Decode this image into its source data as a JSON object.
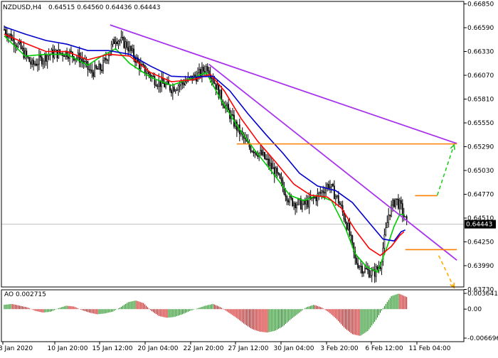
{
  "header": {
    "symbol": "NZDUSD,H4",
    "ohlc": "0.64515 0.64560 0.64436 0.64443"
  },
  "price_axis": {
    "labels": [
      "0.66850",
      "0.66590",
      "0.66330",
      "0.66070",
      "0.65810",
      "0.65550",
      "0.65290",
      "0.65030",
      "0.64770",
      "0.64510",
      "0.64250",
      "0.63990",
      "0.63730"
    ],
    "current_price": "0.64443"
  },
  "ao_panel": {
    "title": "AO 0.002715",
    "labels": [
      "0.003641",
      "0.00",
      "-0.006696"
    ],
    "range": [
      -0.006696,
      0.003641
    ]
  },
  "time_axis": {
    "labels": [
      "8 Jan 2020",
      "10 Jan 20:00",
      "15 Jan 12:00",
      "20 Jan 04:00",
      "22 Jan 20:00",
      "27 Jan 12:00",
      "30 Jan 04:00",
      "3 Feb 20:00",
      "6 Feb 12:00",
      "11 Feb 04:00"
    ]
  },
  "colors": {
    "bull": "#000000",
    "bear": "#000000",
    "ma_fast": "#00cc00",
    "ma_mid": "#ff0000",
    "ma_slow": "#0000cc",
    "trend": "#aa33ee",
    "level": "#ff8000",
    "arrow_up": "#22cc22",
    "arrow_down": "#ffaa00",
    "ao_up": "#008000",
    "ao_down": "#cc0000",
    "grid": "#d8d8d8"
  },
  "chart_data": {
    "type": "candlestick",
    "symbol": "NZDUSD",
    "timeframe": "H4",
    "ylim": [
      0.6367,
      0.669
    ],
    "close_path": [
      {
        "x": 0,
        "y": 0.6657
      },
      {
        "x": 10,
        "y": 0.664
      },
      {
        "x": 20,
        "y": 0.6618
      },
      {
        "x": 32,
        "y": 0.663
      },
      {
        "x": 45,
        "y": 0.6632
      },
      {
        "x": 55,
        "y": 0.6625
      },
      {
        "x": 62,
        "y": 0.661
      },
      {
        "x": 70,
        "y": 0.6615
      },
      {
        "x": 80,
        "y": 0.6648
      },
      {
        "x": 88,
        "y": 0.664
      },
      {
        "x": 98,
        "y": 0.6616
      },
      {
        "x": 110,
        "y": 0.66
      },
      {
        "x": 120,
        "y": 0.6593
      },
      {
        "x": 130,
        "y": 0.66
      },
      {
        "x": 140,
        "y": 0.6608
      },
      {
        "x": 146,
        "y": 0.6617
      },
      {
        "x": 155,
        "y": 0.6585
      },
      {
        "x": 165,
        "y": 0.6555
      },
      {
        "x": 175,
        "y": 0.653
      },
      {
        "x": 185,
        "y": 0.652
      },
      {
        "x": 195,
        "y": 0.65
      },
      {
        "x": 205,
        "y": 0.647
      },
      {
        "x": 215,
        "y": 0.6465
      },
      {
        "x": 225,
        "y": 0.6475
      },
      {
        "x": 233,
        "y": 0.6488
      },
      {
        "x": 240,
        "y": 0.647
      },
      {
        "x": 247,
        "y": 0.644
      },
      {
        "x": 252,
        "y": 0.6405
      },
      {
        "x": 258,
        "y": 0.6395
      },
      {
        "x": 265,
        "y": 0.639
      },
      {
        "x": 270,
        "y": 0.64
      },
      {
        "x": 276,
        "y": 0.6455
      },
      {
        "x": 281,
        "y": 0.6472
      },
      {
        "x": 285,
        "y": 0.6462
      },
      {
        "x": 289,
        "y": 0.6444
      }
    ],
    "candle_count": 290,
    "moving_averages": [
      {
        "color_key": "ma_fast",
        "points": [
          {
            "x": 0,
            "y": 0.665
          },
          {
            "x": 15,
            "y": 0.6628
          },
          {
            "x": 30,
            "y": 0.663
          },
          {
            "x": 45,
            "y": 0.663
          },
          {
            "x": 60,
            "y": 0.6618
          },
          {
            "x": 70,
            "y": 0.6628
          },
          {
            "x": 80,
            "y": 0.6636
          },
          {
            "x": 90,
            "y": 0.662
          },
          {
            "x": 105,
            "y": 0.6605
          },
          {
            "x": 120,
            "y": 0.6596
          },
          {
            "x": 135,
            "y": 0.6604
          },
          {
            "x": 145,
            "y": 0.661
          },
          {
            "x": 155,
            "y": 0.6582
          },
          {
            "x": 168,
            "y": 0.655
          },
          {
            "x": 180,
            "y": 0.6525
          },
          {
            "x": 192,
            "y": 0.6502
          },
          {
            "x": 205,
            "y": 0.6476
          },
          {
            "x": 215,
            "y": 0.647
          },
          {
            "x": 225,
            "y": 0.6476
          },
          {
            "x": 235,
            "y": 0.647
          },
          {
            "x": 245,
            "y": 0.644
          },
          {
            "x": 252,
            "y": 0.6412
          },
          {
            "x": 260,
            "y": 0.6398
          },
          {
            "x": 268,
            "y": 0.6392
          },
          {
            "x": 275,
            "y": 0.642
          },
          {
            "x": 280,
            "y": 0.6442
          },
          {
            "x": 284,
            "y": 0.6455
          },
          {
            "x": 287,
            "y": 0.6455
          }
        ]
      },
      {
        "color_key": "ma_mid",
        "points": [
          {
            "x": 0,
            "y": 0.6652
          },
          {
            "x": 15,
            "y": 0.6642
          },
          {
            "x": 30,
            "y": 0.6633
          },
          {
            "x": 45,
            "y": 0.6633
          },
          {
            "x": 60,
            "y": 0.6624
          },
          {
            "x": 75,
            "y": 0.663
          },
          {
            "x": 90,
            "y": 0.6628
          },
          {
            "x": 105,
            "y": 0.661
          },
          {
            "x": 120,
            "y": 0.66
          },
          {
            "x": 135,
            "y": 0.6602
          },
          {
            "x": 148,
            "y": 0.6608
          },
          {
            "x": 158,
            "y": 0.659
          },
          {
            "x": 170,
            "y": 0.656
          },
          {
            "x": 182,
            "y": 0.6535
          },
          {
            "x": 195,
            "y": 0.6512
          },
          {
            "x": 208,
            "y": 0.6488
          },
          {
            "x": 220,
            "y": 0.6476
          },
          {
            "x": 232,
            "y": 0.6474
          },
          {
            "x": 242,
            "y": 0.6462
          },
          {
            "x": 252,
            "y": 0.6438
          },
          {
            "x": 262,
            "y": 0.6418
          },
          {
            "x": 270,
            "y": 0.641
          },
          {
            "x": 278,
            "y": 0.642
          },
          {
            "x": 284,
            "y": 0.6432
          },
          {
            "x": 287,
            "y": 0.6436
          }
        ]
      },
      {
        "color_key": "ma_slow",
        "points": [
          {
            "x": 0,
            "y": 0.666
          },
          {
            "x": 15,
            "y": 0.6652
          },
          {
            "x": 30,
            "y": 0.6645
          },
          {
            "x": 45,
            "y": 0.6641
          },
          {
            "x": 60,
            "y": 0.6634
          },
          {
            "x": 75,
            "y": 0.6634
          },
          {
            "x": 90,
            "y": 0.663
          },
          {
            "x": 105,
            "y": 0.6617
          },
          {
            "x": 120,
            "y": 0.6606
          },
          {
            "x": 135,
            "y": 0.6605
          },
          {
            "x": 150,
            "y": 0.6606
          },
          {
            "x": 162,
            "y": 0.659
          },
          {
            "x": 175,
            "y": 0.6565
          },
          {
            "x": 188,
            "y": 0.6542
          },
          {
            "x": 200,
            "y": 0.6522
          },
          {
            "x": 212,
            "y": 0.65
          },
          {
            "x": 225,
            "y": 0.6486
          },
          {
            "x": 238,
            "y": 0.6481
          },
          {
            "x": 250,
            "y": 0.6468
          },
          {
            "x": 262,
            "y": 0.6446
          },
          {
            "x": 272,
            "y": 0.6428
          },
          {
            "x": 280,
            "y": 0.6426
          },
          {
            "x": 285,
            "y": 0.6436
          },
          {
            "x": 288,
            "y": 0.6438
          }
        ]
      }
    ],
    "trend_lines": [
      {
        "x1": 76,
        "y1": 0.6662,
        "x2": 325,
        "y2": 0.65325
      },
      {
        "x1": 147,
        "y1": 0.6619,
        "x2": 325,
        "y2": 0.6405
      }
    ],
    "levels": [
      {
        "x1": 167,
        "x2": 325,
        "y": 0.6532
      },
      {
        "x1": 295,
        "x2": 311,
        "y": 0.64755
      },
      {
        "x1": 288,
        "x2": 325,
        "y": 0.64165
      }
    ],
    "arrows": [
      {
        "color_key": "arrow_up",
        "x1": 311,
        "y1": 0.6476,
        "x2": 323,
        "y2": 0.6531
      },
      {
        "color_key": "arrow_down",
        "x1": 312,
        "y1": 0.641,
        "x2": 323,
        "y2": 0.6375
      }
    ],
    "ao_values": [
      0.001,
      0.0012,
      0.0008,
      0.0004,
      -0.0004,
      -0.0008,
      -0.0006,
      0.0002,
      0.0008,
      0.0006,
      -0.0002,
      -0.0008,
      -0.0012,
      -0.001,
      -0.0006,
      0.0004,
      0.0016,
      0.002,
      0.0014,
      -0.0004,
      -0.0016,
      -0.002,
      -0.0018,
      -0.0012,
      -0.0004,
      0.0002,
      0.0008,
      0.0012,
      0.0004,
      -0.0008,
      -0.002,
      -0.0034,
      -0.0046,
      -0.0052,
      -0.0054,
      -0.005,
      -0.004,
      -0.0024,
      -0.001,
      0.0004,
      0.001,
      0.0004,
      -0.0008,
      -0.0024,
      -0.0044,
      -0.0058,
      -0.0062,
      -0.005,
      -0.0026,
      0.0004,
      0.003,
      0.0036,
      0.0028
    ]
  }
}
